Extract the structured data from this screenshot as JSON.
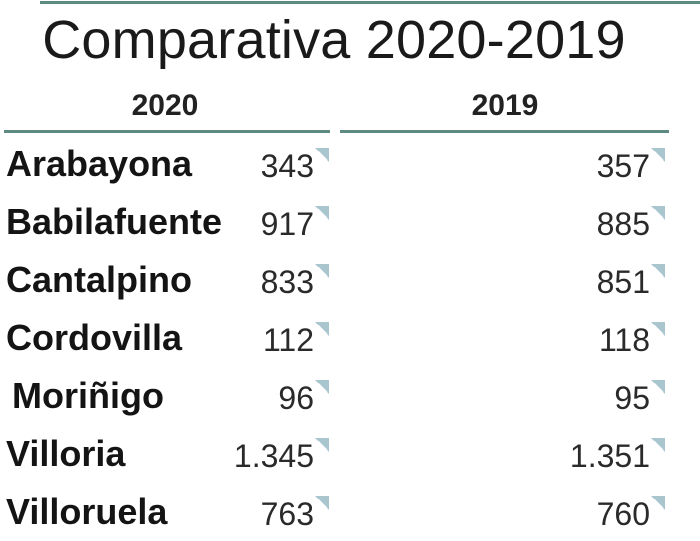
{
  "title": "Comparativa 2020-2019",
  "columns": {
    "year_a": "2020",
    "year_b": "2019"
  },
  "rows": [
    {
      "town": "Arabayona",
      "v2020": "343",
      "v2019": "357"
    },
    {
      "town": "Babilafuente",
      "v2020": "917",
      "v2019": "885"
    },
    {
      "town": "Cantalpino",
      "v2020": "833",
      "v2019": "851"
    },
    {
      "town": "Cordovilla",
      "v2020": "112",
      "v2019": "118"
    },
    {
      "town": "Moriñigo",
      "v2020": "96",
      "v2019": "95"
    },
    {
      "town": "Villoria",
      "v2020": "1.345",
      "v2019": "1.351"
    },
    {
      "town": "Villoruela",
      "v2020": "763",
      "v2019": "760"
    }
  ],
  "icons": {
    "cell_corner": "cell-corner-icon"
  },
  "colors": {
    "rule": "#5f8a82",
    "corner_icon": "#a9c6cf"
  }
}
